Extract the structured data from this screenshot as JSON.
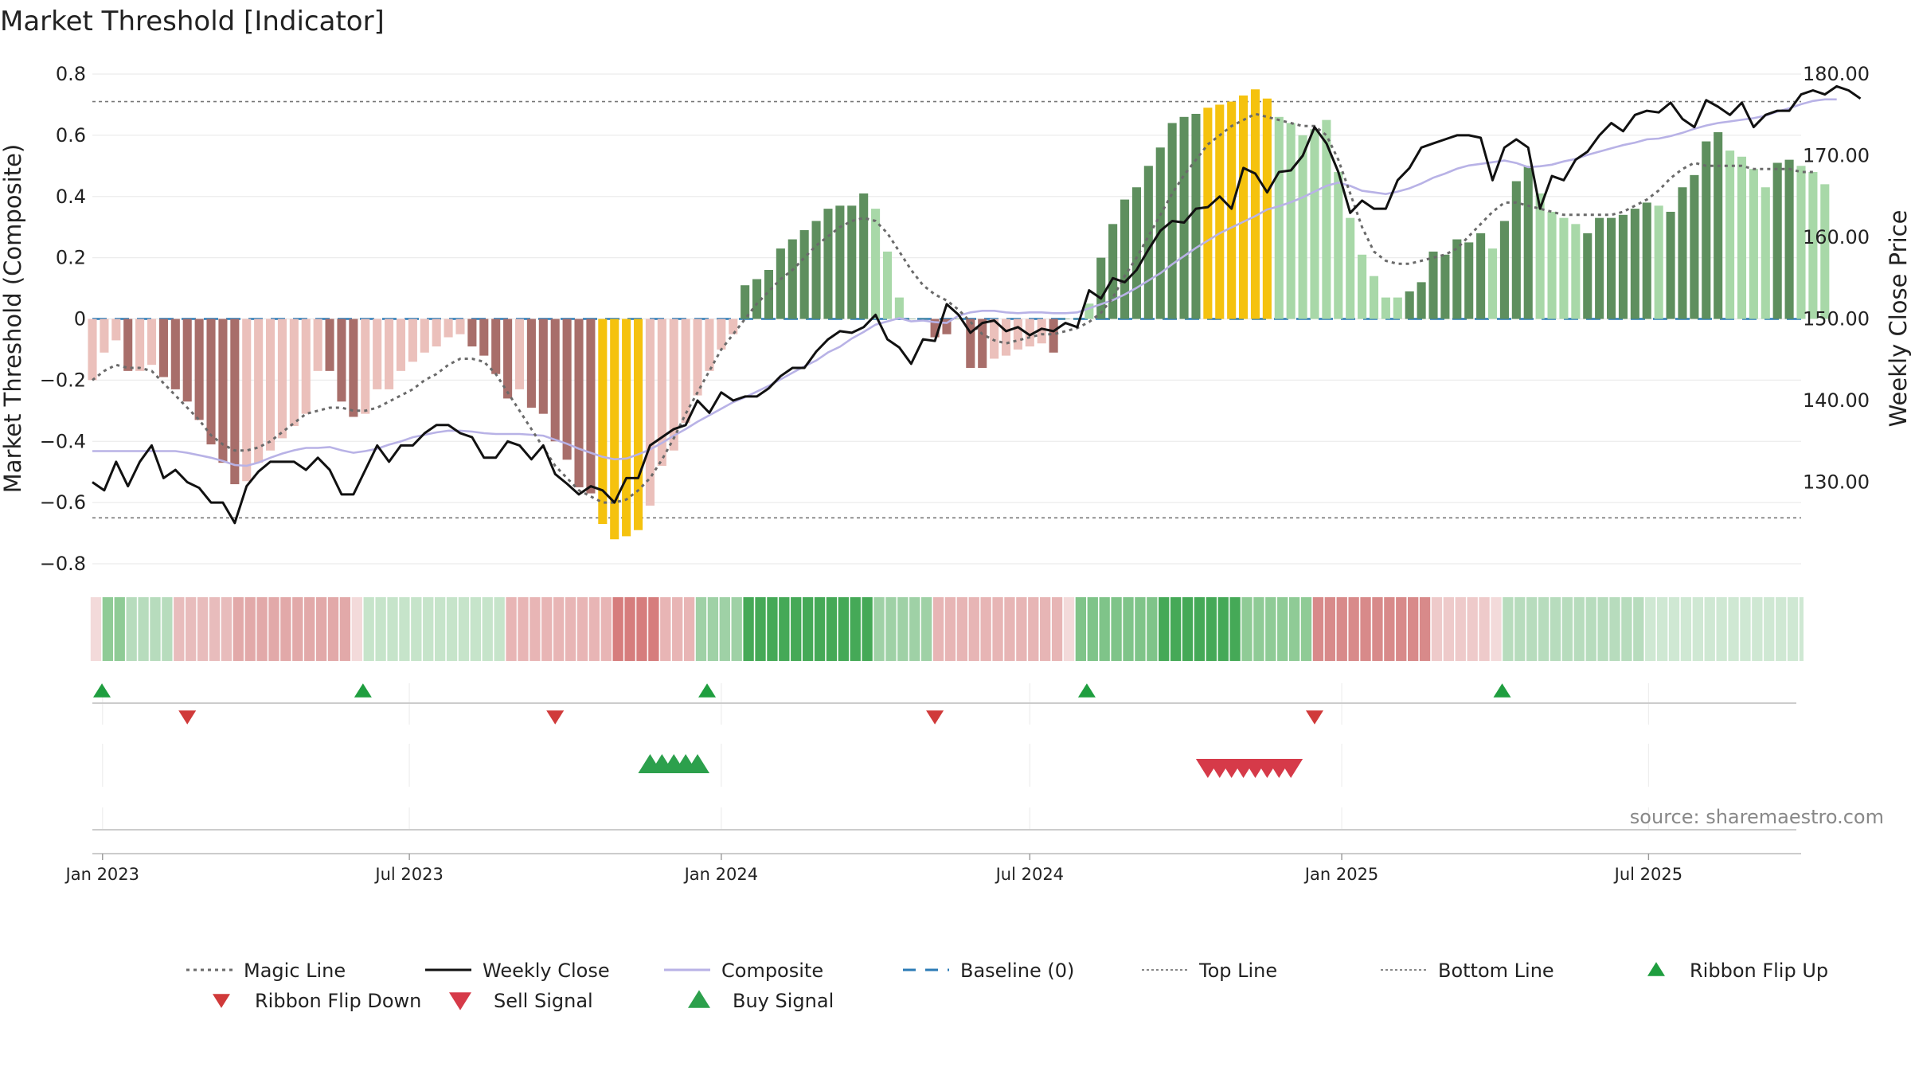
{
  "chart_data": {
    "type": "bar",
    "title": "Market Threshold [Indicator]",
    "ylabel_left": "Market Threshold (Composite)",
    "ylabel_right": "Weekly Close Price",
    "source": "source: sharemaestro.com",
    "ylim_left": [
      -0.8,
      0.8
    ],
    "ylim_right": [
      120,
      180
    ],
    "yticks_left": [
      {
        "v": 0.8,
        "label": "0.8"
      },
      {
        "v": 0.6,
        "label": "0.6"
      },
      {
        "v": 0.4,
        "label": "0.4"
      },
      {
        "v": 0.2,
        "label": "0.2"
      },
      {
        "v": 0,
        "label": "0"
      },
      {
        "v": -0.2,
        "label": "−0.2"
      },
      {
        "v": -0.4,
        "label": "−0.4"
      },
      {
        "v": -0.6,
        "label": "−0.6"
      },
      {
        "v": -0.8,
        "label": "−0.8"
      }
    ],
    "yticks_right": [
      {
        "v": 180,
        "label": "180.00"
      },
      {
        "v": 170,
        "label": "170.00"
      },
      {
        "v": 160,
        "label": "160.00"
      },
      {
        "v": 150,
        "label": "150.00"
      },
      {
        "v": 140,
        "label": "140.00"
      },
      {
        "v": 130,
        "label": "130.00"
      }
    ],
    "x_start": "2022-12-26",
    "x_end": "2025-09-29",
    "xticks": [
      {
        "date": "2023-01-01",
        "label": "Jan 2023"
      },
      {
        "date": "2023-07-01",
        "label": "Jul 2023"
      },
      {
        "date": "2024-01-01",
        "label": "Jan 2024"
      },
      {
        "date": "2024-07-01",
        "label": "Jul 2024"
      },
      {
        "date": "2025-01-01",
        "label": "Jan 2025"
      },
      {
        "date": "2025-07-01",
        "label": "Jul 2025"
      }
    ],
    "top_line": 0.71,
    "bottom_line": -0.65,
    "baseline": 0,
    "colors": {
      "neg_dark": "#a86e6a",
      "neg_light": "#ebc0bb",
      "pos_dark": "#5e8f5e",
      "pos_light": "#a8d8a8",
      "extreme": "#f5c20e",
      "close": "#111111",
      "composite": "#b8b2e6",
      "magic": "#6a6a6a",
      "baseline": "#2c7bb6",
      "guide": "#777777",
      "buy": "#2ca04c",
      "sell": "#d63a49",
      "flip_up": "#1f9e3f",
      "flip_down": "#d03a3a"
    },
    "bars": [
      -0.2,
      -0.11,
      -0.07,
      -0.17,
      -0.17,
      -0.15,
      -0.19,
      -0.23,
      -0.27,
      -0.33,
      -0.41,
      -0.47,
      -0.54,
      -0.53,
      -0.47,
      -0.43,
      -0.39,
      -0.35,
      -0.31,
      -0.17,
      -0.17,
      -0.27,
      -0.32,
      -0.31,
      -0.23,
      -0.23,
      -0.17,
      -0.14,
      -0.11,
      -0.09,
      -0.06,
      -0.05,
      -0.09,
      -0.12,
      -0.18,
      -0.26,
      -0.23,
      -0.29,
      -0.31,
      -0.4,
      -0.46,
      -0.55,
      -0.57,
      -0.67,
      -0.72,
      -0.71,
      -0.69,
      -0.61,
      -0.48,
      -0.43,
      -0.34,
      -0.25,
      -0.17,
      -0.1,
      -0.05,
      0.11,
      0.13,
      0.16,
      0.23,
      0.26,
      0.29,
      0.32,
      0.36,
      0.37,
      0.37,
      0.41,
      0.36,
      0.22,
      0.07,
      0.0,
      0.0,
      -0.06,
      -0.05,
      0.0,
      -0.16,
      -0.16,
      -0.13,
      -0.12,
      -0.1,
      -0.09,
      -0.08,
      -0.11,
      0.0,
      0.0,
      0.05,
      0.2,
      0.31,
      0.39,
      0.43,
      0.5,
      0.56,
      0.64,
      0.66,
      0.67,
      0.69,
      0.7,
      0.71,
      0.73,
      0.75,
      0.72,
      0.66,
      0.64,
      0.6,
      0.62,
      0.65,
      0.48,
      0.33,
      0.21,
      0.14,
      0.07,
      0.07,
      0.09,
      0.12,
      0.22,
      0.21,
      0.26,
      0.25,
      0.28,
      0.23,
      0.32,
      0.45,
      0.5,
      0.41,
      0.35,
      0.33,
      0.31,
      0.28,
      0.33,
      0.33,
      0.34,
      0.36,
      0.38,
      0.37,
      0.35,
      0.43,
      0.47,
      0.58,
      0.61,
      0.55,
      0.53,
      0.49,
      0.43,
      0.51,
      0.52,
      0.5,
      0.48,
      0.44
    ],
    "bar_colors": [
      "neg_light",
      "neg_light",
      "neg_light",
      "neg_dark",
      "neg_light",
      "neg_light",
      "neg_dark",
      "neg_dark",
      "neg_dark",
      "neg_dark",
      "neg_dark",
      "neg_dark",
      "neg_dark",
      "neg_light",
      "neg_light",
      "neg_light",
      "neg_light",
      "neg_light",
      "neg_light",
      "neg_light",
      "neg_dark",
      "neg_dark",
      "neg_dark",
      "neg_light",
      "neg_light",
      "neg_light",
      "neg_light",
      "neg_light",
      "neg_light",
      "neg_light",
      "neg_light",
      "neg_light",
      "neg_dark",
      "neg_dark",
      "neg_dark",
      "neg_dark",
      "neg_light",
      "neg_dark",
      "neg_dark",
      "neg_dark",
      "neg_dark",
      "neg_dark",
      "neg_dark",
      "extreme",
      "extreme",
      "extreme",
      "extreme",
      "neg_light",
      "neg_light",
      "neg_light",
      "neg_light",
      "neg_light",
      "neg_light",
      "neg_light",
      "neg_light",
      "pos_dark",
      "pos_dark",
      "pos_dark",
      "pos_dark",
      "pos_dark",
      "pos_dark",
      "pos_dark",
      "pos_dark",
      "pos_dark",
      "pos_dark",
      "pos_dark",
      "pos_light",
      "pos_light",
      "pos_light",
      "pos_dark",
      "pos_dark",
      "neg_dark",
      "neg_dark",
      "pos_dark",
      "neg_dark",
      "neg_dark",
      "neg_light",
      "neg_light",
      "neg_light",
      "neg_light",
      "neg_light",
      "neg_dark",
      "pos_dark",
      "pos_dark",
      "pos_light",
      "pos_dark",
      "pos_dark",
      "pos_dark",
      "pos_dark",
      "pos_dark",
      "pos_dark",
      "pos_dark",
      "pos_dark",
      "pos_dark",
      "extreme",
      "extreme",
      "extreme",
      "extreme",
      "extreme",
      "extreme",
      "pos_light",
      "pos_light",
      "pos_light",
      "pos_light",
      "pos_light",
      "pos_light",
      "pos_light",
      "pos_light",
      "pos_light",
      "pos_light",
      "pos_light",
      "pos_dark",
      "pos_dark",
      "pos_dark",
      "pos_dark",
      "pos_dark",
      "pos_dark",
      "pos_dark",
      "pos_light",
      "pos_dark",
      "pos_dark",
      "pos_dark",
      "pos_light",
      "pos_light",
      "pos_light",
      "pos_light",
      "pos_dark",
      "pos_dark",
      "pos_dark",
      "pos_dark",
      "pos_dark",
      "pos_dark",
      "pos_light",
      "pos_dark",
      "pos_dark",
      "pos_dark",
      "pos_dark",
      "pos_dark",
      "pos_light",
      "pos_light",
      "pos_light",
      "pos_light",
      "pos_dark",
      "pos_dark",
      "pos_light",
      "pos_light",
      "pos_light"
    ],
    "magic_line": [
      -0.2,
      -0.17,
      -0.15,
      -0.16,
      -0.16,
      -0.17,
      -0.21,
      -0.25,
      -0.29,
      -0.33,
      -0.38,
      -0.41,
      -0.43,
      -0.43,
      -0.42,
      -0.4,
      -0.37,
      -0.34,
      -0.31,
      -0.3,
      -0.29,
      -0.29,
      -0.3,
      -0.3,
      -0.29,
      -0.27,
      -0.25,
      -0.23,
      -0.2,
      -0.18,
      -0.15,
      -0.13,
      -0.13,
      -0.14,
      -0.18,
      -0.24,
      -0.3,
      -0.36,
      -0.42,
      -0.48,
      -0.52,
      -0.56,
      -0.58,
      -0.6,
      -0.6,
      -0.59,
      -0.56,
      -0.52,
      -0.46,
      -0.39,
      -0.31,
      -0.24,
      -0.17,
      -0.1,
      -0.05,
      0.0,
      0.05,
      0.09,
      0.13,
      0.16,
      0.2,
      0.24,
      0.27,
      0.3,
      0.32,
      0.33,
      0.32,
      0.28,
      0.22,
      0.16,
      0.11,
      0.08,
      0.06,
      0.03,
      -0.01,
      -0.05,
      -0.07,
      -0.08,
      -0.07,
      -0.06,
      -0.05,
      -0.05,
      -0.04,
      -0.03,
      -0.01,
      0.02,
      0.07,
      0.14,
      0.2,
      0.27,
      0.34,
      0.41,
      0.47,
      0.52,
      0.57,
      0.6,
      0.63,
      0.65,
      0.67,
      0.66,
      0.65,
      0.64,
      0.63,
      0.63,
      0.6,
      0.52,
      0.41,
      0.3,
      0.22,
      0.19,
      0.18,
      0.18,
      0.19,
      0.2,
      0.21,
      0.23,
      0.27,
      0.31,
      0.35,
      0.38,
      0.38,
      0.37,
      0.36,
      0.35,
      0.34,
      0.34,
      0.34,
      0.34,
      0.34,
      0.35,
      0.37,
      0.39,
      0.42,
      0.46,
      0.49,
      0.51,
      0.5,
      0.5,
      0.5,
      0.5,
      0.49,
      0.49,
      0.49,
      0.49,
      0.48,
      0.48
    ],
    "weekly_close": [
      130.0,
      129.0,
      132.5,
      129.5,
      132.5,
      134.5,
      130.5,
      131.5,
      130.0,
      129.3,
      127.5,
      127.5,
      125.0,
      129.5,
      131.3,
      132.5,
      132.5,
      132.5,
      131.5,
      133.0,
      131.5,
      128.5,
      128.5,
      131.5,
      134.5,
      132.5,
      134.5,
      134.5,
      136.0,
      137.0,
      137.0,
      136.0,
      135.5,
      133.0,
      133.0,
      135.0,
      134.5,
      132.8,
      134.5,
      131.0,
      129.8,
      128.5,
      129.5,
      129.0,
      127.5,
      130.5,
      130.5,
      134.5,
      135.5,
      136.5,
      137.0,
      140.0,
      138.5,
      141.0,
      140.0,
      140.5,
      140.5,
      141.5,
      143.0,
      144.0,
      144.0,
      146.0,
      147.5,
      148.5,
      148.3,
      149.0,
      150.5,
      147.5,
      146.5,
      144.5,
      147.5,
      147.3,
      151.8,
      150.5,
      148.3,
      149.5,
      149.8,
      148.5,
      149.0,
      148.0,
      148.8,
      148.5,
      149.5,
      149.0,
      153.5,
      152.5,
      155.0,
      154.5,
      156.0,
      158.5,
      160.8,
      162.0,
      161.8,
      163.5,
      163.7,
      165.0,
      163.5,
      168.5,
      167.8,
      165.5,
      168.0,
      168.2,
      170.0,
      173.5,
      171.5,
      168.0,
      163.0,
      164.5,
      163.5,
      163.5,
      167.0,
      168.5,
      171.0,
      171.5,
      172.0,
      172.5,
      172.5,
      172.2,
      167.0,
      171.0,
      172.0,
      171.0,
      163.5,
      167.5,
      167.0,
      169.5,
      170.5,
      172.5,
      174.0,
      173.0,
      175.0,
      175.5,
      175.3,
      176.5,
      174.5,
      173.5,
      176.8,
      176.0,
      175.0,
      176.5,
      173.5,
      175.0,
      175.5,
      175.5,
      177.5,
      178.0,
      177.5,
      178.5,
      178.0,
      177.0
    ],
    "composite": [
      133.8,
      133.8,
      133.8,
      133.8,
      133.8,
      133.8,
      133.8,
      133.8,
      133.6,
      133.3,
      133.0,
      132.6,
      132.1,
      132.0,
      132.4,
      133.0,
      133.5,
      133.9,
      134.2,
      134.2,
      134.3,
      133.9,
      133.6,
      133.8,
      134.1,
      134.6,
      135.0,
      135.5,
      135.8,
      136.1,
      136.3,
      136.3,
      136.2,
      136.0,
      135.9,
      135.9,
      135.9,
      135.8,
      135.7,
      135.2,
      134.7,
      134.1,
      133.6,
      133.1,
      132.8,
      132.9,
      133.4,
      134.0,
      134.8,
      135.7,
      136.5,
      137.4,
      138.2,
      139.0,
      139.8,
      140.4,
      141.1,
      141.8,
      142.6,
      143.4,
      144.2,
      144.9,
      145.9,
      146.6,
      147.6,
      148.4,
      149.3,
      149.7,
      150.1,
      149.7,
      149.8,
      149.6,
      149.5,
      150.4,
      150.8,
      151.0,
      151.0,
      150.8,
      150.7,
      150.8,
      150.8,
      150.7,
      150.7,
      150.8,
      151.3,
      151.8,
      152.3,
      153.0,
      153.8,
      154.7,
      155.6,
      156.7,
      157.7,
      158.7,
      159.6,
      160.5,
      161.2,
      161.9,
      162.6,
      163.4,
      163.8,
      164.3,
      164.9,
      165.6,
      166.3,
      166.7,
      166.3,
      165.7,
      165.5,
      165.3,
      165.6,
      166.0,
      166.6,
      167.3,
      167.8,
      168.4,
      168.8,
      169.0,
      169.2,
      169.4,
      169.1,
      168.6,
      168.7,
      168.9,
      169.3,
      169.6,
      170.1,
      170.5,
      170.9,
      171.3,
      171.6,
      172.0,
      172.1,
      172.4,
      172.8,
      173.3,
      173.7,
      174.0,
      174.2,
      174.4,
      174.6,
      174.9,
      175.4,
      175.8,
      176.3,
      176.7,
      176.9,
      176.9
    ],
    "ribbon": [
      {
        "to": "2023-01-02",
        "c": "#f3dada"
      },
      {
        "to": "2023-01-16",
        "c": "#8fcb96"
      },
      {
        "to": "2023-02-13",
        "c": "#b7dcbd"
      },
      {
        "to": "2023-03-20",
        "c": "#e8bcbc"
      },
      {
        "to": "2023-05-29",
        "c": "#e2a9a9"
      },
      {
        "to": "2023-06-05",
        "c": "#f3dada"
      },
      {
        "to": "2023-08-28",
        "c": "#c6e4ca"
      },
      {
        "to": "2023-10-30",
        "c": "#e8b5b5"
      },
      {
        "to": "2023-11-27",
        "c": "#d67d7d"
      },
      {
        "to": "2023-12-18",
        "c": "#e8b5b5"
      },
      {
        "to": "2024-01-15",
        "c": "#9fd1a6"
      },
      {
        "to": "2024-04-01",
        "c": "#45a957"
      },
      {
        "to": "2024-05-06",
        "c": "#9fd1a6"
      },
      {
        "to": "2024-07-22",
        "c": "#e7b5b5"
      },
      {
        "to": "2024-07-29",
        "c": "#f3dada"
      },
      {
        "to": "2024-09-16",
        "c": "#7fc489"
      },
      {
        "to": "2024-11-04",
        "c": "#45a957"
      },
      {
        "to": "2024-12-16",
        "c": "#8fcb96"
      },
      {
        "to": "2025-02-24",
        "c": "#d88a8a"
      },
      {
        "to": "2025-03-31",
        "c": "#eecaca"
      },
      {
        "to": "2025-04-07",
        "c": "#f3dada"
      },
      {
        "to": "2025-06-30",
        "c": "#b7dcbd"
      },
      {
        "to": "2025-09-29",
        "c": "#cfe8d3"
      }
    ],
    "flip_up": [
      "2022-12-26",
      "2023-05-29",
      "2023-12-18",
      "2024-07-29",
      "2025-03-31"
    ],
    "flip_down": [
      "2023-02-20",
      "2023-09-25",
      "2024-05-06",
      "2024-12-16"
    ],
    "buy_signal": [
      "2023-11-20",
      "2023-11-27",
      "2023-12-04",
      "2023-12-11",
      "2023-12-18"
    ],
    "sell_signal": [
      "2024-10-14",
      "2024-10-21",
      "2024-10-28",
      "2024-11-04",
      "2024-11-11",
      "2024-11-18",
      "2024-11-25",
      "2024-12-02"
    ]
  },
  "legend": [
    {
      "label": "Magic Line",
      "kind": "dotted",
      "color": "#6a6a6a"
    },
    {
      "label": "Weekly Close",
      "kind": "solid",
      "color": "#111111"
    },
    {
      "label": "Composite",
      "kind": "solid",
      "color": "#b8b2e6"
    },
    {
      "label": "Baseline (0)",
      "kind": "dashed",
      "color": "#2c7bb6"
    },
    {
      "label": "Top Line",
      "kind": "fine-dotted",
      "color": "#888888"
    },
    {
      "label": "Bottom Line",
      "kind": "fine-dotted",
      "color": "#888888"
    },
    {
      "label": "Ribbon Flip Up",
      "kind": "tri-up",
      "color": "#1f9e3f"
    },
    {
      "label": "Ribbon Flip Down",
      "kind": "tri-down",
      "color": "#d03a3a"
    },
    {
      "label": "Sell Signal",
      "kind": "tri-down-big",
      "color": "#d63a49"
    },
    {
      "label": "Buy Signal",
      "kind": "tri-up-big",
      "color": "#2ca04c"
    }
  ]
}
